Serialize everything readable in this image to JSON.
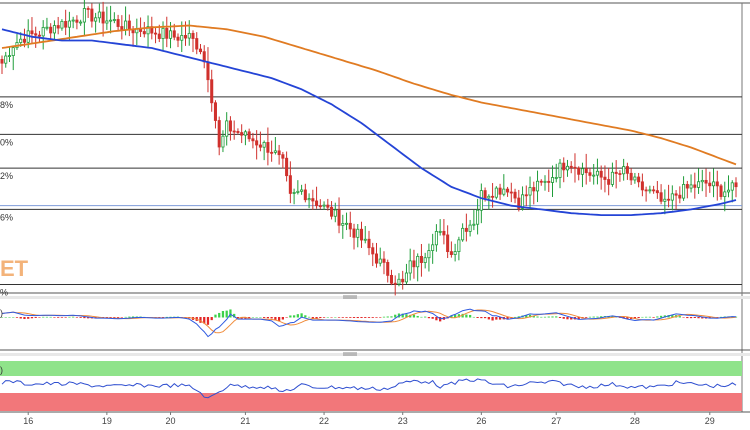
{
  "chart_data": {
    "type": "candlestick",
    "watermark": "ET",
    "colors": {
      "up": "#1f9d3a",
      "down": "#d0312d",
      "ma_fast": "#2444d6",
      "ma_slow": "#e07b22",
      "macd_up": "#3cd24a",
      "macd_down": "#e32626",
      "macd_line": "#2f5ae0",
      "signal_line": "#f08b3a",
      "rsi_line": "#2f4fd0",
      "rsi_overbought": "#8fe38a",
      "rsi_oversold": "#f2777a",
      "border": "#444444"
    },
    "fib_levels": [
      {
        "label": "8%",
        "value": 1.0
      },
      {
        "label": "0%",
        "value": 0.0
      },
      {
        "label": "2%",
        "value": -0.9
      },
      {
        "label": "6%",
        "value": -2.0
      },
      {
        "label": "%",
        "value": -4.0
      }
    ],
    "x_labels": [
      "16",
      "19",
      "20",
      "21",
      "22",
      "23",
      "26",
      "27",
      "28",
      "29"
    ],
    "x_label_index": [
      7,
      28,
      45,
      65,
      86,
      107,
      128,
      148,
      169,
      189
    ],
    "current_price": -1.45,
    "price_range": [
      -4.2,
      3.5
    ],
    "keypoints_close": [
      [
        0,
        1.9
      ],
      [
        3,
        2.4
      ],
      [
        6,
        2.6
      ],
      [
        10,
        2.7
      ],
      [
        14,
        2.9
      ],
      [
        18,
        3.0
      ],
      [
        22,
        3.2
      ],
      [
        26,
        3.1
      ],
      [
        30,
        3.0
      ],
      [
        34,
        2.8
      ],
      [
        38,
        2.8
      ],
      [
        42,
        2.7
      ],
      [
        46,
        2.6
      ],
      [
        50,
        2.6
      ],
      [
        53,
        2.3
      ],
      [
        55,
        1.6
      ],
      [
        57,
        0.4
      ],
      [
        58,
        -0.4
      ],
      [
        60,
        0.2
      ],
      [
        64,
        0.0
      ],
      [
        68,
        -0.2
      ],
      [
        72,
        -0.4
      ],
      [
        75,
        -0.8
      ],
      [
        77,
        -1.7
      ],
      [
        80,
        -1.5
      ],
      [
        84,
        -1.8
      ],
      [
        88,
        -2.1
      ],
      [
        92,
        -2.4
      ],
      [
        96,
        -2.8
      ],
      [
        100,
        -3.3
      ],
      [
        104,
        -3.8
      ],
      [
        107,
        -4.0
      ],
      [
        109,
        -3.5
      ],
      [
        112,
        -3.3
      ],
      [
        116,
        -2.6
      ],
      [
        118,
        -2.8
      ],
      [
        120,
        -3.2
      ],
      [
        123,
        -2.5
      ],
      [
        126,
        -2.3
      ],
      [
        128,
        -1.6
      ],
      [
        131,
        -1.5
      ],
      [
        135,
        -1.4
      ],
      [
        138,
        -1.8
      ],
      [
        141,
        -1.5
      ],
      [
        145,
        -1.3
      ],
      [
        148,
        -1.0
      ],
      [
        151,
        -0.7
      ],
      [
        154,
        -0.9
      ],
      [
        158,
        -1.1
      ],
      [
        162,
        -1.2
      ],
      [
        166,
        -1.0
      ],
      [
        170,
        -1.4
      ],
      [
        174,
        -1.6
      ],
      [
        177,
        -1.9
      ],
      [
        180,
        -1.6
      ],
      [
        184,
        -1.4
      ],
      [
        188,
        -1.3
      ],
      [
        192,
        -1.5
      ],
      [
        196,
        -1.45
      ]
    ],
    "keypoints_ma_fast": [
      [
        0,
        2.8
      ],
      [
        8,
        2.6
      ],
      [
        16,
        2.5
      ],
      [
        24,
        2.5
      ],
      [
        32,
        2.4
      ],
      [
        40,
        2.3
      ],
      [
        48,
        2.1
      ],
      [
        56,
        1.9
      ],
      [
        64,
        1.7
      ],
      [
        72,
        1.5
      ],
      [
        80,
        1.2
      ],
      [
        88,
        0.8
      ],
      [
        96,
        0.3
      ],
      [
        104,
        -0.3
      ],
      [
        112,
        -0.9
      ],
      [
        120,
        -1.4
      ],
      [
        128,
        -1.7
      ],
      [
        136,
        -1.9
      ],
      [
        144,
        -2.0
      ],
      [
        152,
        -2.1
      ],
      [
        160,
        -2.15
      ],
      [
        168,
        -2.15
      ],
      [
        176,
        -2.1
      ],
      [
        184,
        -2.0
      ],
      [
        192,
        -1.85
      ],
      [
        196,
        -1.75
      ]
    ],
    "keypoints_ma_slow": [
      [
        0,
        2.3
      ],
      [
        10,
        2.45
      ],
      [
        20,
        2.6
      ],
      [
        30,
        2.75
      ],
      [
        40,
        2.85
      ],
      [
        50,
        2.9
      ],
      [
        60,
        2.8
      ],
      [
        70,
        2.6
      ],
      [
        80,
        2.3
      ],
      [
        90,
        2.0
      ],
      [
        100,
        1.7
      ],
      [
        110,
        1.35
      ],
      [
        120,
        1.05
      ],
      [
        128,
        0.85
      ],
      [
        136,
        0.7
      ],
      [
        144,
        0.55
      ],
      [
        152,
        0.4
      ],
      [
        160,
        0.25
      ],
      [
        168,
        0.1
      ],
      [
        176,
        -0.1
      ],
      [
        184,
        -0.35
      ],
      [
        192,
        -0.65
      ],
      [
        196,
        -0.8
      ]
    ],
    "n_candles": 197
  }
}
